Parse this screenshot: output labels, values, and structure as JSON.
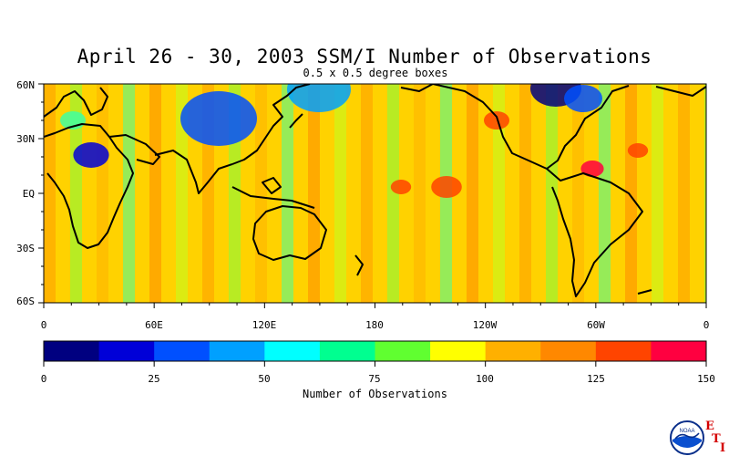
{
  "header": {
    "title": "April 26 - 30, 2003 SSM/I Number of Observations",
    "subtitle": "0.5 x 0.5 degree boxes"
  },
  "map": {
    "lat_labels": [
      "60N",
      "30N",
      "EQ",
      "30S",
      "60S"
    ],
    "lon_labels": [
      "0",
      "60E",
      "120E",
      "180",
      "120W",
      "60W",
      "0"
    ]
  },
  "colorbar": {
    "title": "Number of Observations",
    "labels": [
      "0",
      "25",
      "50",
      "75",
      "100",
      "125",
      "150"
    ],
    "colors": [
      "#000080",
      "#0000d8",
      "#0050ff",
      "#00a0ff",
      "#00ffff",
      "#00ff90",
      "#60ff30",
      "#ffff00",
      "#ffb000",
      "#ff8800",
      "#ff4400",
      "#ff0040"
    ]
  },
  "logo": {
    "badge": "NOAA",
    "letters": [
      "E",
      "T",
      "I"
    ]
  }
}
